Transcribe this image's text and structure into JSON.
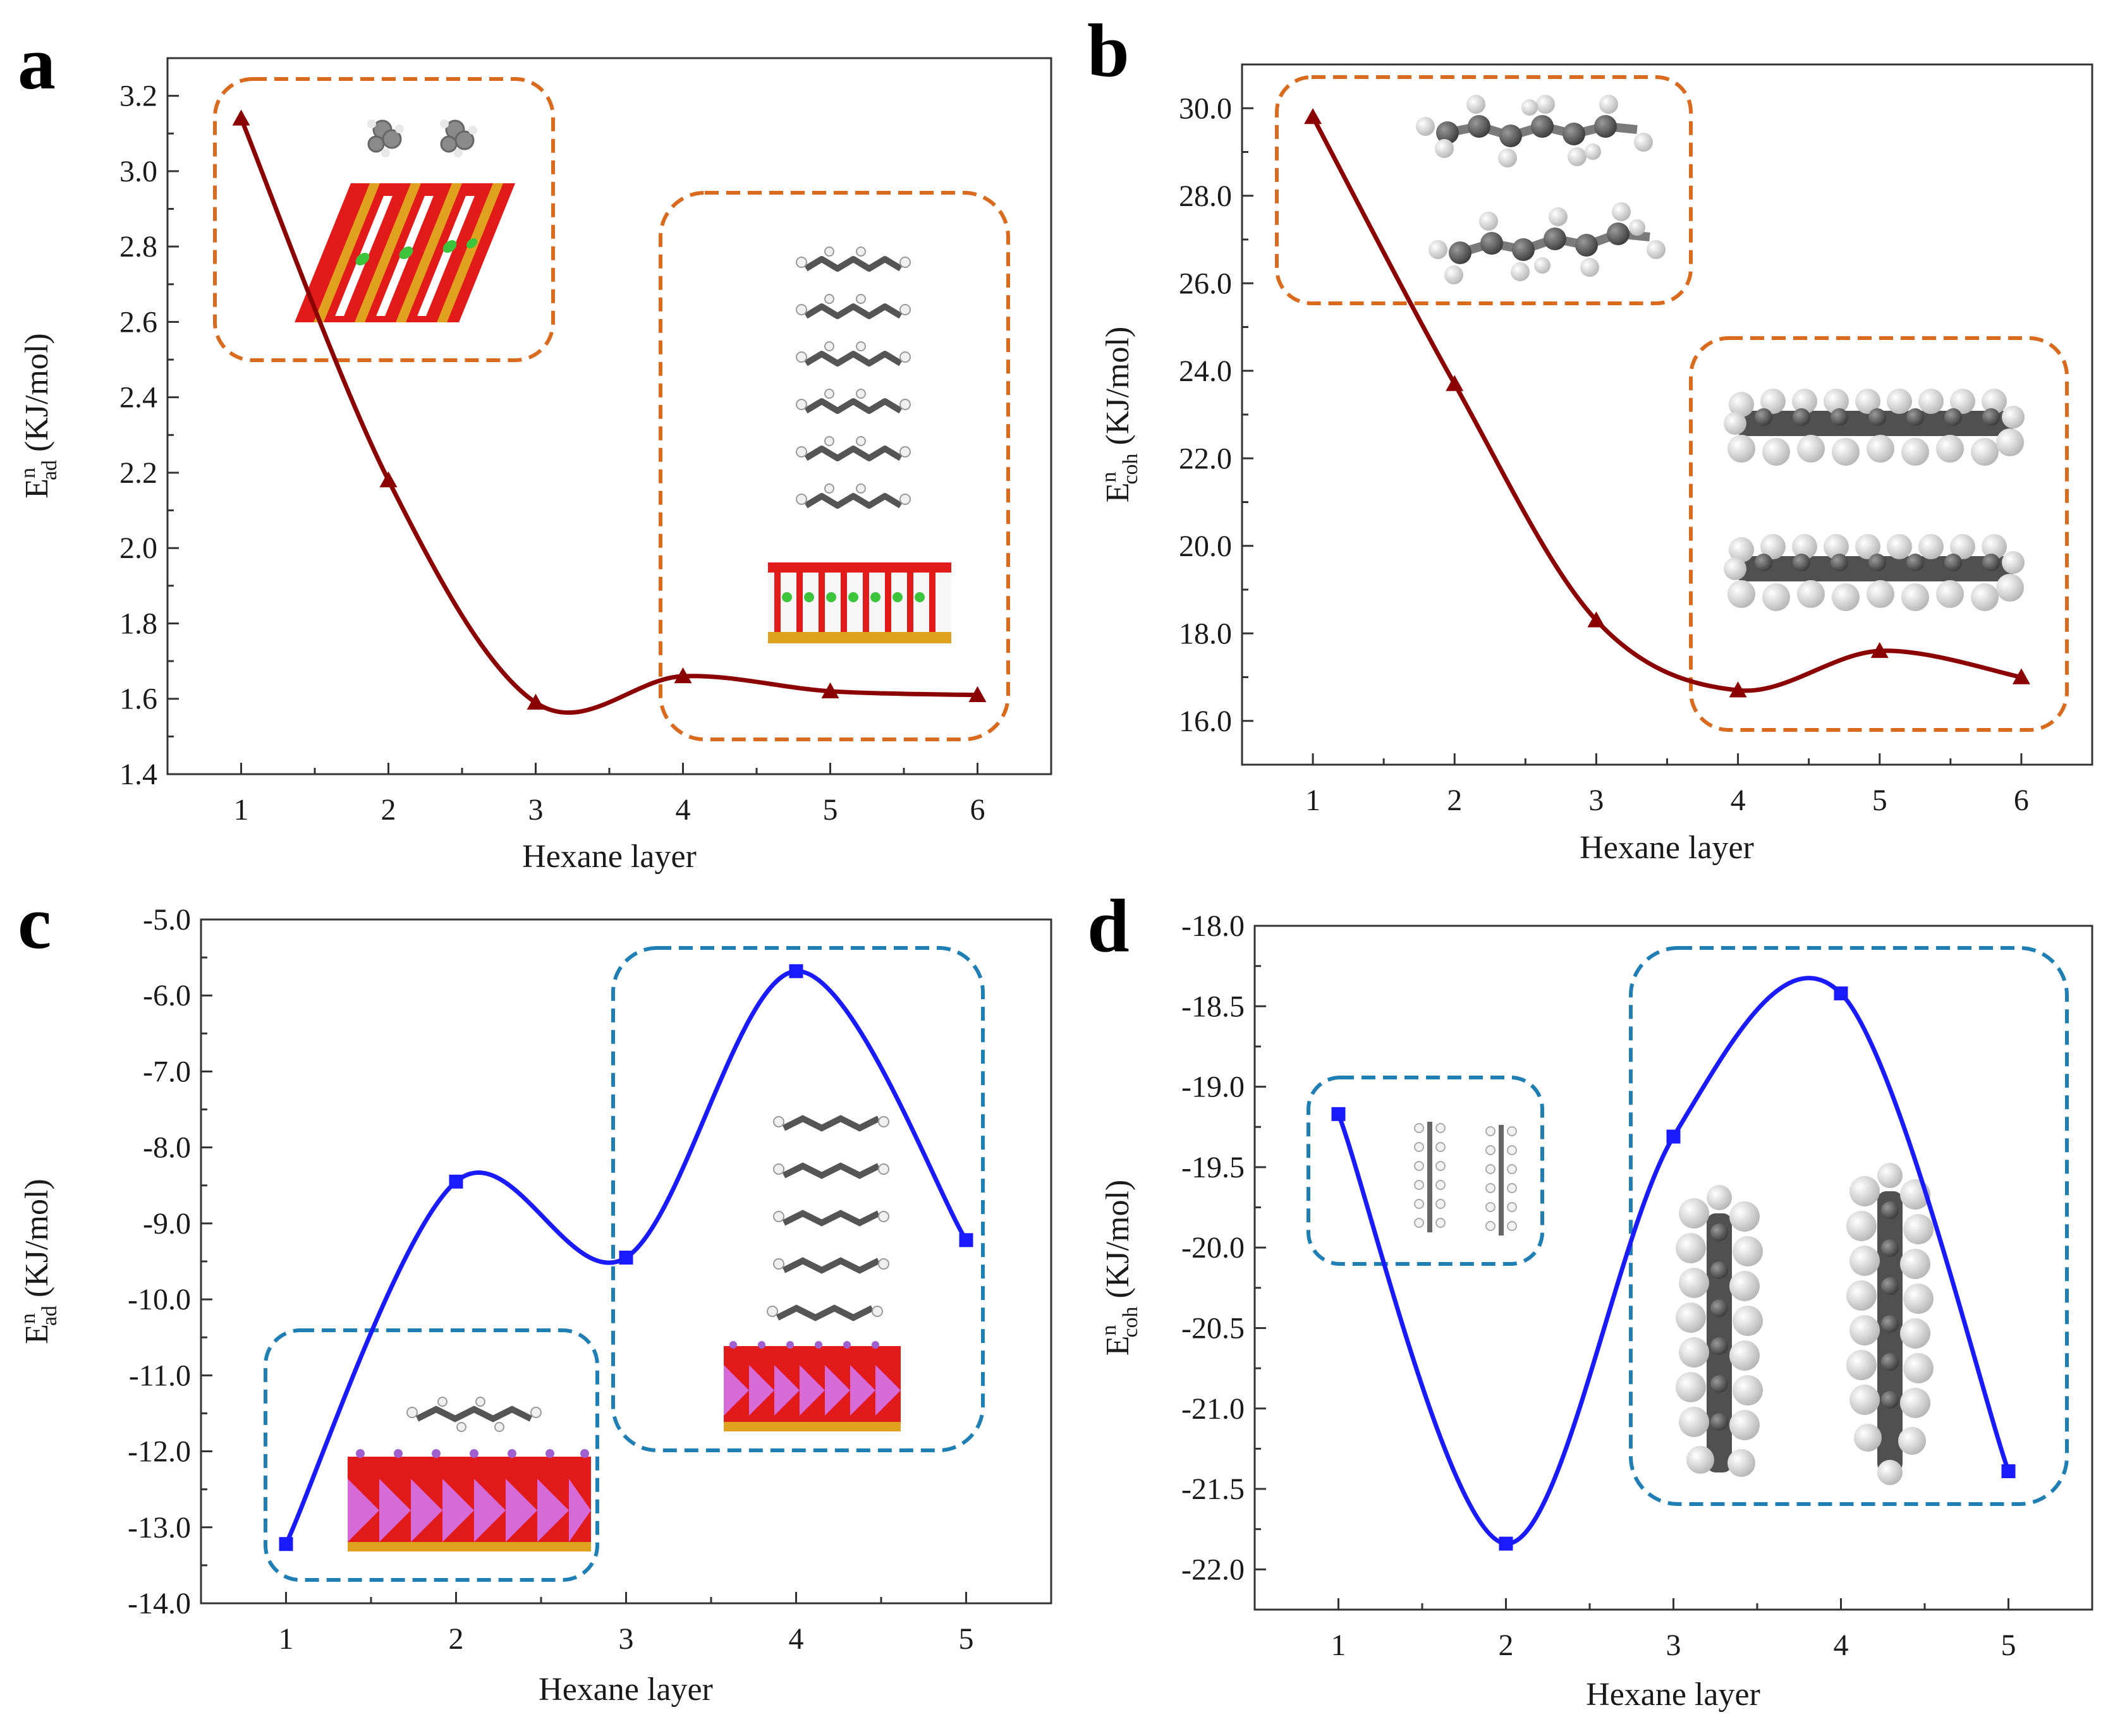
{
  "figure": {
    "colors": {
      "orange_box": "#d96a1e",
      "blue_box": "#1f7fb5",
      "red_line": "#8b0000",
      "blue_line": "#1a1aff",
      "oxygen": "#e31a1a",
      "silicon": "#e0a21e",
      "chlorine": "#3cc43c",
      "hydrogen": "#f2f2f2",
      "carbon": "#5c5c5c",
      "magenta": "#d66ad6"
    }
  },
  "chart_data": [
    {
      "panel": "a",
      "type": "line",
      "marker": "triangle",
      "color": "#8b0000",
      "box_color": "#d96a1e",
      "title": "",
      "xlabel": "Hexane layer",
      "ylabel_main": "E",
      "ylabel_sup": "n",
      "ylabel_sub": "ad",
      "ylabel_unit": " (KJ/mol)",
      "x": [
        1,
        2,
        3,
        4,
        5,
        6
      ],
      "y": [
        3.14,
        2.18,
        1.59,
        1.66,
        1.62,
        1.61
      ],
      "xlim": [
        0.5,
        6.5
      ],
      "ylim": [
        1.4,
        3.3
      ],
      "xticks": [
        1,
        2,
        3,
        4,
        5,
        6
      ],
      "yticks": [
        1.4,
        1.6,
        1.8,
        2.0,
        2.2,
        2.4,
        2.6,
        2.8,
        3.0,
        3.2
      ],
      "ytick_decimals": 1
    },
    {
      "panel": "b",
      "type": "line",
      "marker": "triangle",
      "color": "#8b0000",
      "box_color": "#d96a1e",
      "title": "",
      "xlabel": "Hexane layer",
      "ylabel_main": "E",
      "ylabel_sup": "n",
      "ylabel_sub": "coh",
      "ylabel_unit": " (KJ/mol)",
      "x": [
        1,
        2,
        3,
        4,
        5,
        6
      ],
      "y": [
        29.8,
        23.7,
        18.3,
        16.7,
        17.6,
        17.0
      ],
      "xlim": [
        0.5,
        6.5
      ],
      "ylim": [
        15.0,
        31.0
      ],
      "xticks": [
        1,
        2,
        3,
        4,
        5,
        6
      ],
      "yticks": [
        16.0,
        18.0,
        20.0,
        22.0,
        24.0,
        26.0,
        28.0,
        30.0
      ],
      "ytick_decimals": 1
    },
    {
      "panel": "c",
      "type": "line",
      "marker": "square",
      "color": "#1a1aff",
      "box_color": "#1f7fb5",
      "title": "",
      "xlabel": "Hexane layer",
      "ylabel_main": "E",
      "ylabel_sup": "n",
      "ylabel_sub": "ad",
      "ylabel_unit": " (KJ/mol)",
      "x": [
        1,
        2,
        3,
        4,
        5
      ],
      "y": [
        -13.22,
        -8.45,
        -9.45,
        -5.68,
        -9.22
      ],
      "xlim": [
        0.5,
        5.5
      ],
      "ylim": [
        -14.0,
        -5.0
      ],
      "xticks": [
        1,
        2,
        3,
        4,
        5
      ],
      "yticks": [
        -14.0,
        -13.0,
        -12.0,
        -11.0,
        -10.0,
        -9.0,
        -8.0,
        -7.0,
        -6.0,
        -5.0
      ],
      "ytick_decimals": 1
    },
    {
      "panel": "d",
      "type": "line",
      "marker": "square",
      "color": "#1a1aff",
      "box_color": "#1f7fb5",
      "title": "",
      "xlabel": "Hexane layer",
      "ylabel_main": "E",
      "ylabel_sup": "n",
      "ylabel_sub": "coh",
      "ylabel_unit": " (KJ/mol)",
      "x": [
        1,
        2,
        3,
        4,
        5
      ],
      "y": [
        -19.17,
        -21.84,
        -19.31,
        -18.42,
        -21.39
      ],
      "xlim": [
        0.5,
        5.5
      ],
      "ylim": [
        -22.25,
        -18.0
      ],
      "xticks": [
        1,
        2,
        3,
        4,
        5
      ],
      "yticks": [
        -22.0,
        -21.5,
        -21.0,
        -20.5,
        -20.0,
        -19.5,
        -19.0,
        -18.5,
        -18.0
      ],
      "ytick_decimals": 1
    }
  ]
}
